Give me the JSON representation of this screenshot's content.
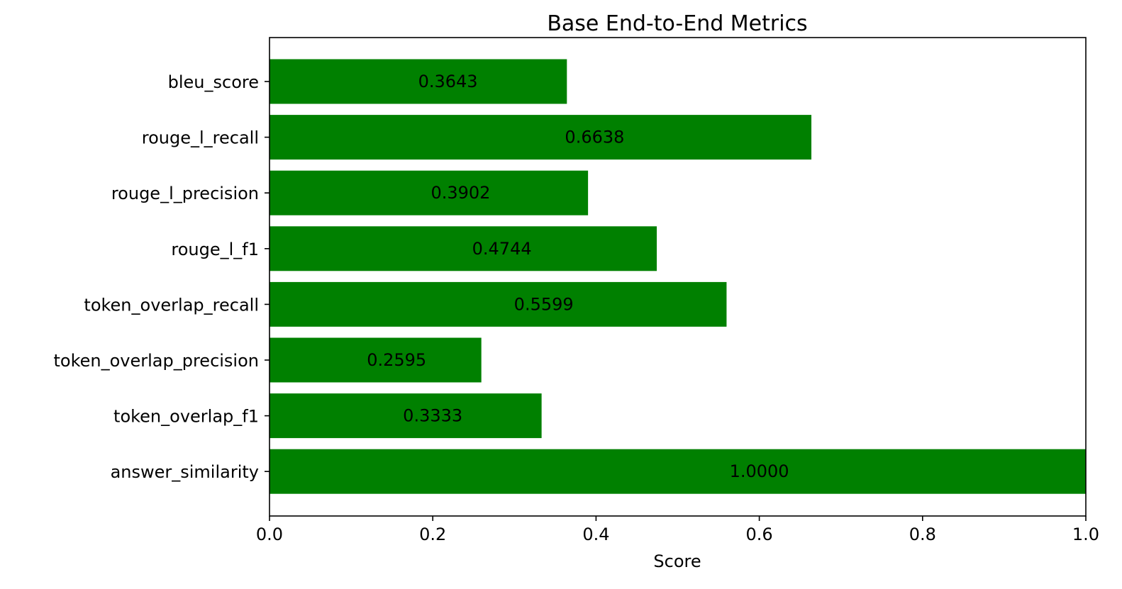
{
  "chart_data": {
    "type": "bar",
    "orientation": "horizontal",
    "title": "Base End-to-End Metrics",
    "xlabel": "Score",
    "ylabel": "",
    "xlim": [
      0,
      1.0
    ],
    "x_ticks": [
      "0.0",
      "0.2",
      "0.4",
      "0.6",
      "0.8",
      "1.0"
    ],
    "x_tick_values": [
      0,
      0.2,
      0.4,
      0.6,
      0.8,
      1.0
    ],
    "categories": [
      "bleu_score",
      "rouge_l_recall",
      "rouge_l_precision",
      "rouge_l_f1",
      "token_overlap_recall",
      "token_overlap_precision",
      "token_overlap_f1",
      "answer_similarity"
    ],
    "values": [
      0.3643,
      0.6638,
      0.3902,
      0.4744,
      0.5599,
      0.2595,
      0.3333,
      1.0
    ],
    "value_labels": [
      "0.3643",
      "0.6638",
      "0.3902",
      "0.4744",
      "0.5599",
      "0.2595",
      "0.3333",
      "1.0000"
    ],
    "bar_color": "#008000",
    "grid": false,
    "legend": "none"
  }
}
